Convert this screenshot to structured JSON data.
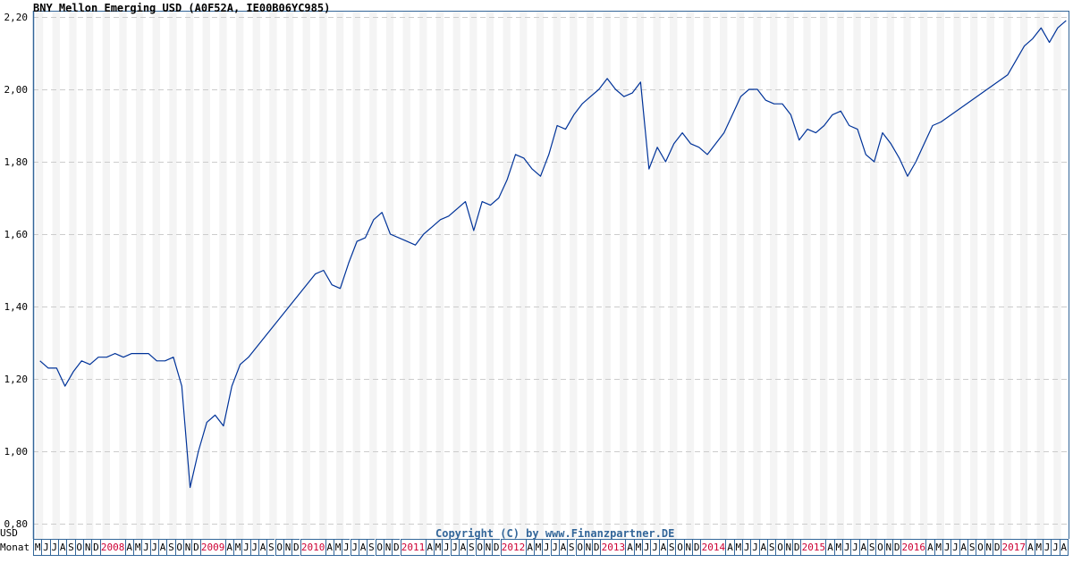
{
  "title": "BNY Mellon Emerging USD (A0F52A, IE00B06YC985)",
  "copyright": "Copyright (C) by www.Finanzpartner.DE",
  "axis": {
    "unit_label": "USD",
    "month_label": "Monat",
    "y_ticks": [
      "2,20",
      "2,00",
      "1,80",
      "1,60",
      "1,40",
      "1,20",
      "1,00",
      "0,80"
    ]
  },
  "colors": {
    "line": "#003399",
    "frame": "#336699",
    "stripe": "#f4f4f4",
    "grid": "#cccccc",
    "year_text": "#cc0033",
    "copyright": "#336699"
  },
  "month_cells": [
    {
      "label": "M",
      "span": 1
    },
    {
      "label": "J",
      "span": 1
    },
    {
      "label": "J",
      "span": 1
    },
    {
      "label": "A",
      "span": 1
    },
    {
      "label": "S",
      "span": 1
    },
    {
      "label": "O",
      "span": 1
    },
    {
      "label": "N",
      "span": 1
    },
    {
      "label": "D",
      "span": 1
    },
    {
      "label": "2008",
      "span": 3,
      "year": true
    },
    {
      "label": "A",
      "span": 1
    },
    {
      "label": "M",
      "span": 1
    },
    {
      "label": "J",
      "span": 1
    },
    {
      "label": "J",
      "span": 1
    },
    {
      "label": "A",
      "span": 1
    },
    {
      "label": "S",
      "span": 1
    },
    {
      "label": "O",
      "span": 1
    },
    {
      "label": "N",
      "span": 1
    },
    {
      "label": "D",
      "span": 1
    },
    {
      "label": "2009",
      "span": 3,
      "year": true
    },
    {
      "label": "A",
      "span": 1
    },
    {
      "label": "M",
      "span": 1
    },
    {
      "label": "J",
      "span": 1
    },
    {
      "label": "J",
      "span": 1
    },
    {
      "label": "A",
      "span": 1
    },
    {
      "label": "S",
      "span": 1
    },
    {
      "label": "O",
      "span": 1
    },
    {
      "label": "N",
      "span": 1
    },
    {
      "label": "D",
      "span": 1
    },
    {
      "label": "2010",
      "span": 3,
      "year": true
    },
    {
      "label": "A",
      "span": 1
    },
    {
      "label": "M",
      "span": 1
    },
    {
      "label": "J",
      "span": 1
    },
    {
      "label": "J",
      "span": 1
    },
    {
      "label": "A",
      "span": 1
    },
    {
      "label": "S",
      "span": 1
    },
    {
      "label": "O",
      "span": 1
    },
    {
      "label": "N",
      "span": 1
    },
    {
      "label": "D",
      "span": 1
    },
    {
      "label": "2011",
      "span": 3,
      "year": true
    },
    {
      "label": "A",
      "span": 1
    },
    {
      "label": "M",
      "span": 1
    },
    {
      "label": "J",
      "span": 1
    },
    {
      "label": "J",
      "span": 1
    },
    {
      "label": "A",
      "span": 1
    },
    {
      "label": "S",
      "span": 1
    },
    {
      "label": "O",
      "span": 1
    },
    {
      "label": "N",
      "span": 1
    },
    {
      "label": "D",
      "span": 1
    },
    {
      "label": "2012",
      "span": 3,
      "year": true
    },
    {
      "label": "A",
      "span": 1
    },
    {
      "label": "M",
      "span": 1
    },
    {
      "label": "J",
      "span": 1
    },
    {
      "label": "J",
      "span": 1
    },
    {
      "label": "A",
      "span": 1
    },
    {
      "label": "S",
      "span": 1
    },
    {
      "label": "O",
      "span": 1
    },
    {
      "label": "N",
      "span": 1
    },
    {
      "label": "D",
      "span": 1
    },
    {
      "label": "2013",
      "span": 3,
      "year": true
    },
    {
      "label": "A",
      "span": 1
    },
    {
      "label": "M",
      "span": 1
    },
    {
      "label": "J",
      "span": 1
    },
    {
      "label": "J",
      "span": 1
    },
    {
      "label": "A",
      "span": 1
    },
    {
      "label": "S",
      "span": 1
    },
    {
      "label": "O",
      "span": 1
    },
    {
      "label": "N",
      "span": 1
    },
    {
      "label": "D",
      "span": 1
    },
    {
      "label": "2014",
      "span": 3,
      "year": true
    },
    {
      "label": "A",
      "span": 1
    },
    {
      "label": "M",
      "span": 1
    },
    {
      "label": "J",
      "span": 1
    },
    {
      "label": "J",
      "span": 1
    },
    {
      "label": "A",
      "span": 1
    },
    {
      "label": "S",
      "span": 1
    },
    {
      "label": "O",
      "span": 1
    },
    {
      "label": "N",
      "span": 1
    },
    {
      "label": "D",
      "span": 1
    },
    {
      "label": "2015",
      "span": 3,
      "year": true
    },
    {
      "label": "A",
      "span": 1
    },
    {
      "label": "M",
      "span": 1
    },
    {
      "label": "J",
      "span": 1
    },
    {
      "label": "J",
      "span": 1
    },
    {
      "label": "A",
      "span": 1
    },
    {
      "label": "S",
      "span": 1
    },
    {
      "label": "O",
      "span": 1
    },
    {
      "label": "N",
      "span": 1
    },
    {
      "label": "D",
      "span": 1
    },
    {
      "label": "2016",
      "span": 3,
      "year": true
    },
    {
      "label": "A",
      "span": 1
    },
    {
      "label": "M",
      "span": 1
    },
    {
      "label": "J",
      "span": 1
    },
    {
      "label": "J",
      "span": 1
    },
    {
      "label": "A",
      "span": 1
    },
    {
      "label": "S",
      "span": 1
    },
    {
      "label": "O",
      "span": 1
    },
    {
      "label": "N",
      "span": 1
    },
    {
      "label": "D",
      "span": 1
    },
    {
      "label": "2017",
      "span": 3,
      "year": true
    },
    {
      "label": "A",
      "span": 1
    },
    {
      "label": "M",
      "span": 1
    },
    {
      "label": "J",
      "span": 1
    },
    {
      "label": "J",
      "span": 1
    },
    {
      "label": "A",
      "span": 1
    }
  ],
  "chart_data": {
    "type": "line",
    "title": "BNY Mellon Emerging USD (A0F52A, IE00B06YC985)",
    "xlabel": "Monat",
    "ylabel": "USD",
    "ylim": [
      0.8,
      2.2
    ],
    "y_ticks": [
      0.8,
      1.0,
      1.2,
      1.4,
      1.6,
      1.8,
      2.0,
      2.2
    ],
    "grid": true,
    "x_range": [
      "2007-05",
      "2017-08"
    ],
    "series": [
      {
        "name": "BNY Mellon Emerging USD",
        "points": [
          [
            "2007-05",
            1.25
          ],
          [
            "2007-06",
            1.23
          ],
          [
            "2007-07",
            1.23
          ],
          [
            "2007-08",
            1.18
          ],
          [
            "2007-09",
            1.22
          ],
          [
            "2007-10",
            1.25
          ],
          [
            "2007-11",
            1.24
          ],
          [
            "2007-12",
            1.26
          ],
          [
            "2008-01",
            1.26
          ],
          [
            "2008-02",
            1.27
          ],
          [
            "2008-03",
            1.26
          ],
          [
            "2008-04",
            1.27
          ],
          [
            "2008-05",
            1.27
          ],
          [
            "2008-06",
            1.27
          ],
          [
            "2008-07",
            1.25
          ],
          [
            "2008-08",
            1.25
          ],
          [
            "2008-09",
            1.26
          ],
          [
            "2008-10",
            1.18
          ],
          [
            "2008-11",
            0.9
          ],
          [
            "2008-12",
            1.0
          ],
          [
            "2009-01",
            1.08
          ],
          [
            "2009-02",
            1.1
          ],
          [
            "2009-03",
            1.07
          ],
          [
            "2009-04",
            1.18
          ],
          [
            "2009-05",
            1.24
          ],
          [
            "2009-06",
            1.26
          ],
          [
            "2010-02",
            1.49
          ],
          [
            "2010-03",
            1.5
          ],
          [
            "2010-04",
            1.46
          ],
          [
            "2010-05",
            1.45
          ],
          [
            "2010-06",
            1.52
          ],
          [
            "2010-07",
            1.58
          ],
          [
            "2010-08",
            1.59
          ],
          [
            "2010-09",
            1.64
          ],
          [
            "2010-10",
            1.66
          ],
          [
            "2010-11",
            1.6
          ],
          [
            "2010-12",
            1.59
          ],
          [
            "2011-01",
            1.58
          ],
          [
            "2011-02",
            1.57
          ],
          [
            "2011-03",
            1.6
          ],
          [
            "2011-04",
            1.62
          ],
          [
            "2011-05",
            1.64
          ],
          [
            "2011-06",
            1.65
          ],
          [
            "2011-07",
            1.67
          ],
          [
            "2011-08",
            1.69
          ],
          [
            "2011-09",
            1.61
          ],
          [
            "2011-10",
            1.69
          ],
          [
            "2011-11",
            1.68
          ],
          [
            "2011-12",
            1.7
          ],
          [
            "2012-01",
            1.75
          ],
          [
            "2012-02",
            1.82
          ],
          [
            "2012-03",
            1.81
          ],
          [
            "2012-04",
            1.78
          ],
          [
            "2012-05",
            1.76
          ],
          [
            "2012-06",
            1.82
          ],
          [
            "2012-07",
            1.9
          ],
          [
            "2012-08",
            1.89
          ],
          [
            "2012-09",
            1.93
          ],
          [
            "2012-10",
            1.96
          ],
          [
            "2012-11",
            1.98
          ],
          [
            "2012-12",
            2.0
          ],
          [
            "2013-01",
            2.03
          ],
          [
            "2013-02",
            2.0
          ],
          [
            "2013-03",
            1.98
          ],
          [
            "2013-04",
            1.99
          ],
          [
            "2013-05",
            2.02
          ],
          [
            "2013-06",
            1.78
          ],
          [
            "2013-07",
            1.84
          ],
          [
            "2013-08",
            1.8
          ],
          [
            "2013-09",
            1.85
          ],
          [
            "2013-10",
            1.88
          ],
          [
            "2013-11",
            1.85
          ],
          [
            "2013-12",
            1.84
          ],
          [
            "2014-01",
            1.82
          ],
          [
            "2014-02",
            1.85
          ],
          [
            "2014-03",
            1.88
          ],
          [
            "2014-04",
            1.93
          ],
          [
            "2014-05",
            1.98
          ],
          [
            "2014-06",
            2.0
          ],
          [
            "2014-07",
            2.0
          ],
          [
            "2014-08",
            1.97
          ],
          [
            "2014-09",
            1.96
          ],
          [
            "2014-10",
            1.96
          ],
          [
            "2014-11",
            1.93
          ],
          [
            "2014-12",
            1.86
          ],
          [
            "2015-01",
            1.89
          ],
          [
            "2015-02",
            1.88
          ],
          [
            "2015-03",
            1.9
          ],
          [
            "2015-04",
            1.93
          ],
          [
            "2015-05",
            1.94
          ],
          [
            "2015-06",
            1.9
          ],
          [
            "2015-07",
            1.89
          ],
          [
            "2015-08",
            1.82
          ],
          [
            "2015-09",
            1.8
          ],
          [
            "2015-10",
            1.88
          ],
          [
            "2015-11",
            1.85
          ],
          [
            "2015-12",
            1.81
          ],
          [
            "2016-01",
            1.76
          ],
          [
            "2016-02",
            1.8
          ],
          [
            "2016-03",
            1.85
          ],
          [
            "2016-04",
            1.9
          ],
          [
            "2016-05",
            1.91
          ],
          [
            "2017-01",
            2.04
          ],
          [
            "2017-02",
            2.08
          ],
          [
            "2017-03",
            2.12
          ],
          [
            "2017-04",
            2.14
          ],
          [
            "2017-05",
            2.17
          ],
          [
            "2017-06",
            2.13
          ],
          [
            "2017-07",
            2.17
          ],
          [
            "2017-08",
            2.19
          ]
        ]
      }
    ]
  }
}
